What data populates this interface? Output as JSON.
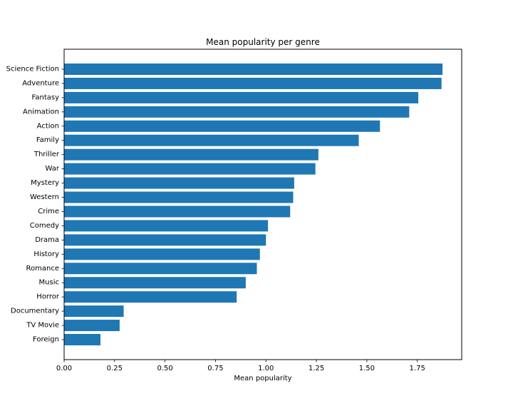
{
  "chart_data": {
    "type": "bar",
    "orientation": "horizontal",
    "title": "Mean popularity per genre",
    "xlabel": "Mean popularity",
    "ylabel": "",
    "categories": [
      "Science Fiction",
      "Adventure",
      "Fantasy",
      "Animation",
      "Action",
      "Family",
      "Thriller",
      "War",
      "Mystery",
      "Western",
      "Crime",
      "Comedy",
      "Drama",
      "History",
      "Romance",
      "Music",
      "Horror",
      "Documentary",
      "TV Movie",
      "Foreign"
    ],
    "values": [
      1.875,
      1.87,
      1.755,
      1.71,
      1.565,
      1.46,
      1.26,
      1.245,
      1.14,
      1.135,
      1.12,
      1.01,
      1.0,
      0.97,
      0.955,
      0.9,
      0.855,
      0.295,
      0.275,
      0.18
    ],
    "xlim": [
      0,
      1.97
    ],
    "xticks": [
      "0.00",
      "0.25",
      "0.50",
      "0.75",
      "1.00",
      "1.25",
      "1.50",
      "1.75"
    ],
    "grid": false,
    "bar_color": "#1f77b4"
  }
}
